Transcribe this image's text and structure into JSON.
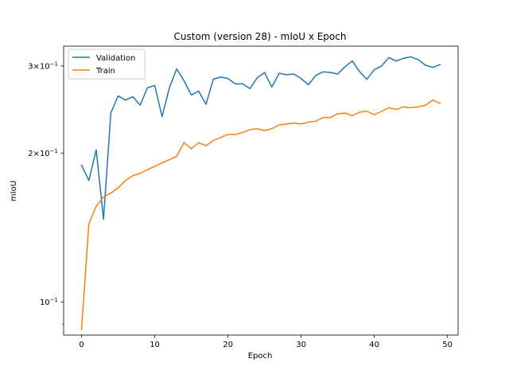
{
  "chart_data": {
    "type": "line",
    "title": "Custom (version 28) - mIoU x Epoch",
    "xlabel": "Epoch",
    "ylabel": "mIoU",
    "xlim": [
      -2.45,
      51.45
    ],
    "ylim": [
      0.0857,
      0.329
    ],
    "yscale": "log",
    "grid": false,
    "legend_position": "top-left",
    "x_ticks": [
      0,
      10,
      20,
      30,
      40,
      50
    ],
    "x_tick_labels": [
      "0",
      "10",
      "20",
      "30",
      "40",
      "50"
    ],
    "y_ticks": [
      0.1,
      0.2,
      0.3
    ],
    "y_tick_labels": [
      {
        "base": "10",
        "exp": "−1",
        "mult": ""
      },
      {
        "base": "10",
        "exp": "−1",
        "mult": "2×"
      },
      {
        "base": "10",
        "exp": "−1",
        "mult": "3×"
      }
    ],
    "y_minor_ticks": [
      0.09
    ],
    "series": [
      {
        "name": "Validation",
        "color": "#1f77b4",
        "x": [
          0,
          1,
          2,
          3,
          4,
          5,
          6,
          7,
          8,
          9,
          10,
          11,
          12,
          13,
          14,
          15,
          16,
          17,
          18,
          19,
          20,
          21,
          22,
          23,
          24,
          25,
          26,
          27,
          28,
          29,
          30,
          31,
          32,
          33,
          34,
          35,
          36,
          37,
          38,
          39,
          40,
          41,
          42,
          43,
          44,
          45,
          46,
          47,
          48,
          49
        ],
        "values": [
          0.189,
          0.176,
          0.203,
          0.147,
          0.241,
          0.261,
          0.256,
          0.26,
          0.25,
          0.271,
          0.274,
          0.237,
          0.271,
          0.296,
          0.28,
          0.262,
          0.267,
          0.251,
          0.282,
          0.285,
          0.283,
          0.276,
          0.276,
          0.27,
          0.284,
          0.291,
          0.272,
          0.29,
          0.288,
          0.289,
          0.283,
          0.275,
          0.287,
          0.292,
          0.291,
          0.289,
          0.299,
          0.307,
          0.292,
          0.282,
          0.295,
          0.3,
          0.312,
          0.307,
          0.311,
          0.313,
          0.309,
          0.301,
          0.298,
          0.302
        ]
      },
      {
        "name": "Train",
        "color": "#ff7f0e",
        "x": [
          0,
          1,
          2,
          3,
          4,
          5,
          6,
          7,
          8,
          9,
          10,
          11,
          12,
          13,
          14,
          15,
          16,
          17,
          18,
          19,
          20,
          21,
          22,
          23,
          24,
          25,
          26,
          27,
          28,
          29,
          30,
          31,
          32,
          33,
          34,
          35,
          36,
          37,
          38,
          39,
          40,
          41,
          42,
          43,
          44,
          45,
          46,
          47,
          48,
          49
        ],
        "values": [
          0.088,
          0.144,
          0.156,
          0.163,
          0.166,
          0.17,
          0.176,
          0.18,
          0.182,
          0.185,
          0.188,
          0.191,
          0.194,
          0.197,
          0.21,
          0.204,
          0.21,
          0.207,
          0.212,
          0.215,
          0.218,
          0.218,
          0.22,
          0.223,
          0.224,
          0.222,
          0.224,
          0.228,
          0.229,
          0.23,
          0.229,
          0.231,
          0.232,
          0.236,
          0.236,
          0.24,
          0.241,
          0.238,
          0.242,
          0.243,
          0.239,
          0.243,
          0.247,
          0.245,
          0.248,
          0.247,
          0.248,
          0.25,
          0.256,
          0.252
        ]
      }
    ]
  }
}
